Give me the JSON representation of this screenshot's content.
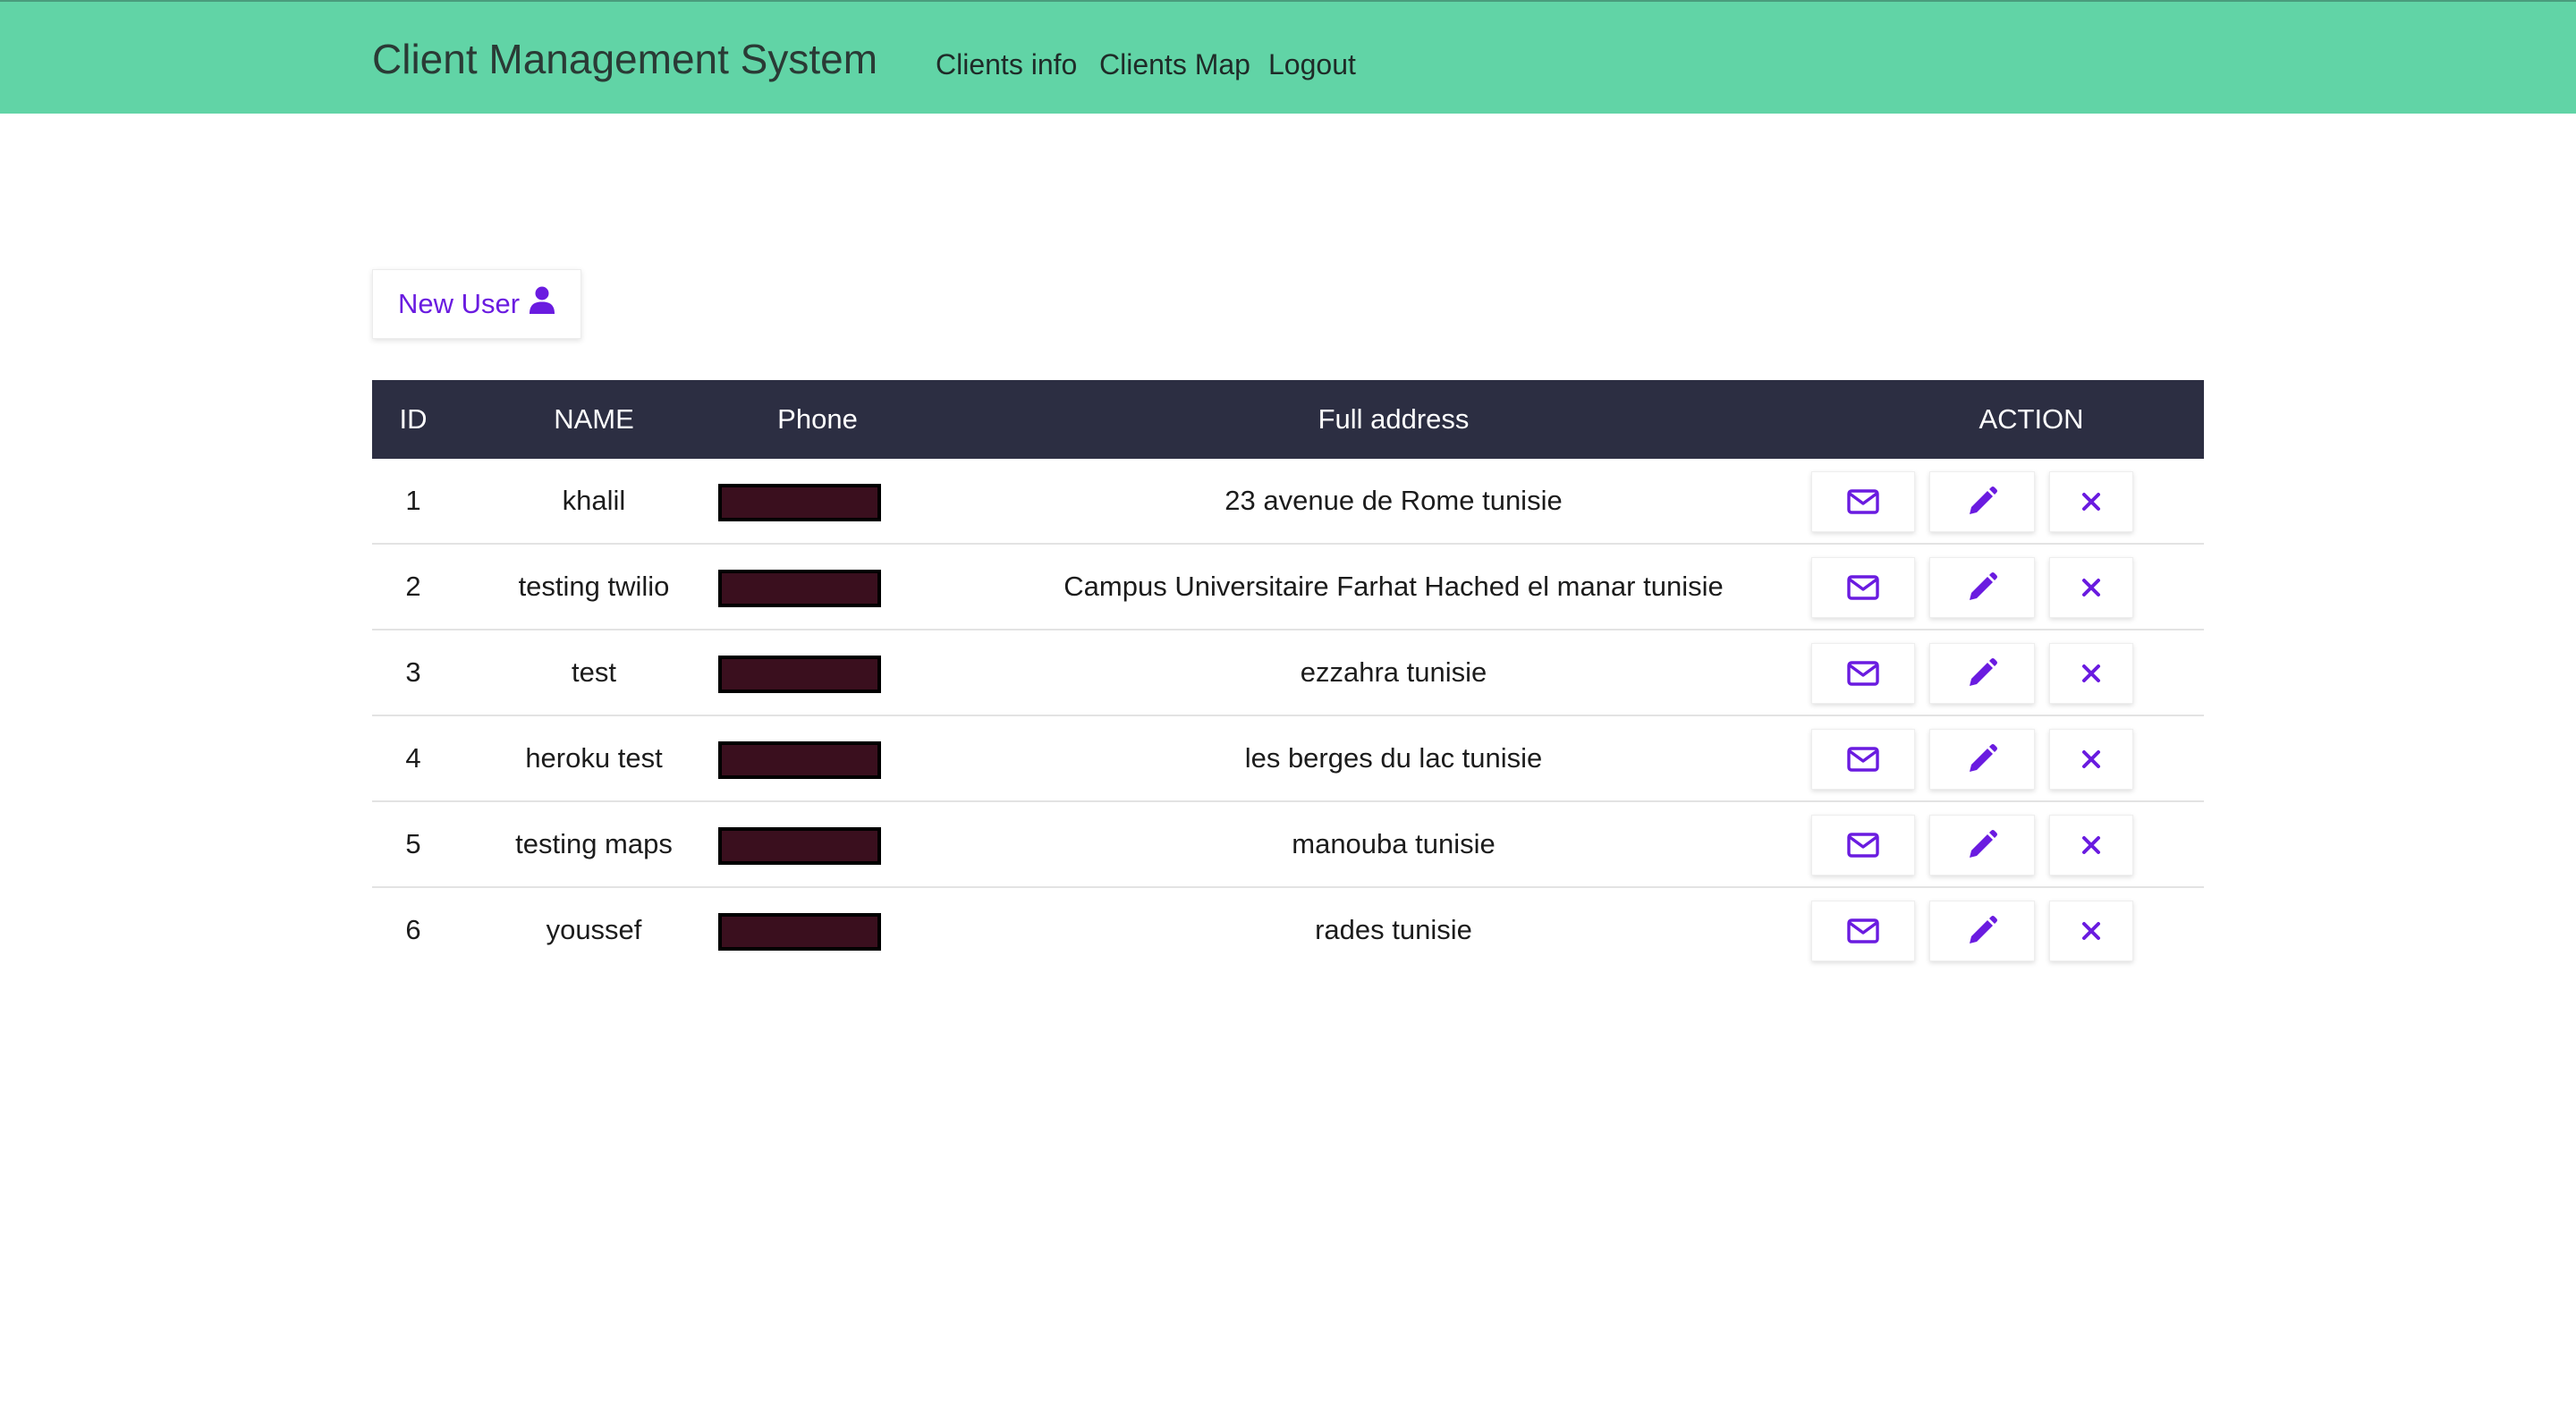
{
  "navbar": {
    "brand": "Client Management System",
    "links": [
      "Clients info",
      "Clients Map",
      "Logout"
    ],
    "background": "#61d4a6"
  },
  "new_user_button": {
    "label": "New User",
    "icon": "user-icon",
    "color": "#6a1be0"
  },
  "table": {
    "headers": [
      "ID",
      "NAME",
      "Phone",
      "Full address",
      "ACTION"
    ],
    "header_background": "#2c2e42",
    "rows": [
      {
        "id": "1",
        "name": "khalil",
        "phone": "",
        "address": "23 avenue de Rome tunisie"
      },
      {
        "id": "2",
        "name": "testing twilio",
        "phone": "",
        "address": "Campus Universitaire Farhat Hached el manar tunisie"
      },
      {
        "id": "3",
        "name": "test",
        "phone": "",
        "address": "ezzahra tunisie"
      },
      {
        "id": "4",
        "name": "heroku test",
        "phone": "",
        "address": "les berges du lac tunisie"
      },
      {
        "id": "5",
        "name": "testing maps",
        "phone": "",
        "address": "manouba tunisie"
      },
      {
        "id": "6",
        "name": "youssef",
        "phone": "",
        "address": "rades tunisie"
      }
    ],
    "action_icons": [
      "envelope-icon",
      "pencil-icon",
      "close-icon"
    ],
    "phone_redacted": true,
    "redaction_color": "#3a0f1e",
    "action_icon_color": "#6a1be0"
  }
}
